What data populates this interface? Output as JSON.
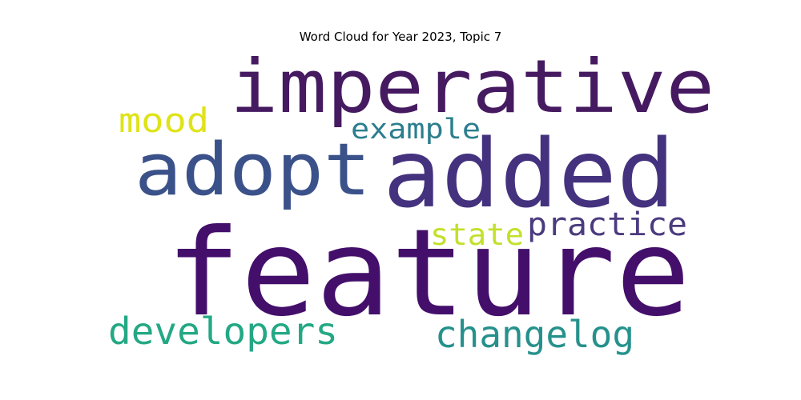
{
  "chart_data": {
    "type": "wordcloud",
    "title": "Word Cloud for Year 2023, Topic 7",
    "words": [
      {
        "text": "feature",
        "weight": 1.0,
        "color": "#440f6b"
      },
      {
        "text": "added",
        "weight": 0.75,
        "color": "#44327e"
      },
      {
        "text": "imperative",
        "weight": 0.55,
        "color": "#461a60"
      },
      {
        "text": "adopt",
        "weight": 0.6,
        "color": "#3b5189"
      },
      {
        "text": "developers",
        "weight": 0.3,
        "color": "#23a884"
      },
      {
        "text": "changelog",
        "weight": 0.3,
        "color": "#26918c"
      },
      {
        "text": "practice",
        "weight": 0.25,
        "color": "#4b3b7e"
      },
      {
        "text": "example",
        "weight": 0.2,
        "color": "#2c7e8e"
      },
      {
        "text": "mood",
        "weight": 0.25,
        "color": "#dfe319"
      },
      {
        "text": "state",
        "weight": 0.22,
        "color": "#c3e02a"
      }
    ]
  }
}
